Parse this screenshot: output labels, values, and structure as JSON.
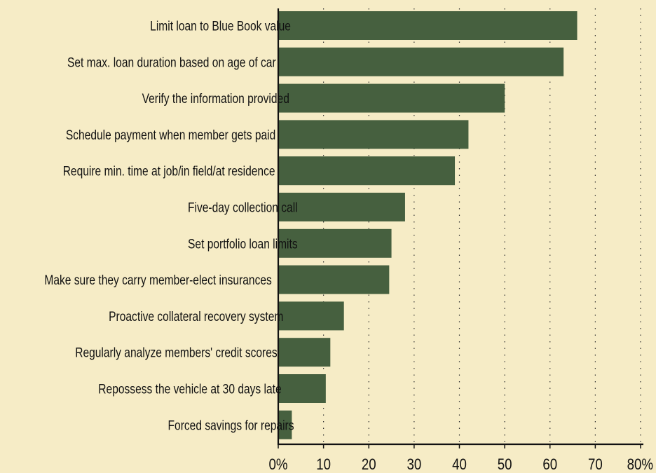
{
  "chart_data": {
    "type": "bar",
    "orientation": "horizontal",
    "categories": [
      "Limit loan to Blue Book value",
      "Set max. loan duration based on age of car",
      "Verify the information provided",
      "Schedule payment when member gets paid",
      "Require min. time at job/in field/at residence",
      "Five-day collection call",
      "Set portfolio loan limits",
      "Make sure they carry member-elect insurances",
      "Proactive collateral recovery system",
      "Regularly analyze members' credit scores",
      "Repossess the vehicle at 30 days late",
      "Forced savings for repairs"
    ],
    "values": [
      66,
      63,
      50,
      42,
      39,
      28,
      25,
      24.5,
      14.5,
      11.5,
      10.5,
      3
    ],
    "xlim": [
      0,
      80
    ],
    "ticks": [
      0,
      10,
      20,
      30,
      40,
      50,
      60,
      70,
      80
    ],
    "tick_labels": [
      "0%",
      "10",
      "20",
      "30",
      "40",
      "50",
      "60",
      "70",
      "80%"
    ],
    "grid": "vertical dotted",
    "bar_color": "#46603f",
    "background_color": "#f6ecc6",
    "title": "",
    "xlabel": "",
    "ylabel": ""
  }
}
